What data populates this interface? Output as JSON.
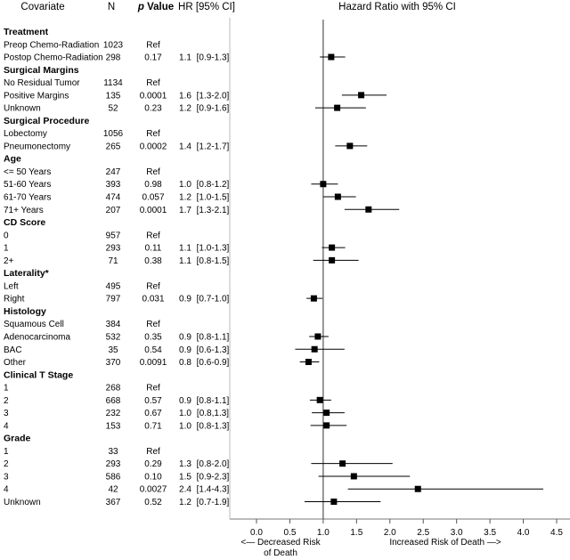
{
  "header": {
    "covariate": "Covariate",
    "n": "N",
    "p_prefix": "p",
    "p_suffix": " Value",
    "hr": "HR [95% CI]",
    "plot_title": "Hazard Ratio with 95% CI"
  },
  "footer": {
    "decreased_line1": "<— Decreased Risk",
    "decreased_line2": "of Death",
    "increased": "Increased Risk of Death —>"
  },
  "chart_data": {
    "type": "forest",
    "title": "Hazard Ratio with 95% CI",
    "xlim": [
      -0.2,
      4.6
    ],
    "xticks": [
      "0.0",
      "0.5",
      "1.0",
      "1.5",
      "2.0",
      "2.5",
      "3.0",
      "3.5",
      "4.0",
      "4.5"
    ],
    "reference_line": 1.0,
    "rows": [
      {
        "kind": "section",
        "label": "Treatment"
      },
      {
        "label": "Preop Chemo-Radiation",
        "n": "1023",
        "p": "Ref",
        "hr": "",
        "ci": ""
      },
      {
        "label": "Postop Chemo-Radiation",
        "n": "298",
        "p": "0.17",
        "hr": "1.1",
        "ci": "[0.9-1.3]",
        "est": 1.12,
        "lo": 0.95,
        "hi": 1.33
      },
      {
        "kind": "section",
        "label": "Surgical Margins"
      },
      {
        "label": "No Residual Tumor",
        "n": "1134",
        "p": "Ref",
        "hr": "",
        "ci": ""
      },
      {
        "label": "Positive Margins",
        "n": "135",
        "p": "0.0001",
        "hr": "1.6",
        "ci": "[1.3-2.0]",
        "est": 1.57,
        "lo": 1.28,
        "hi": 1.95
      },
      {
        "label": "Unknown",
        "n": "52",
        "p": "0.23",
        "hr": "1.2",
        "ci": "[0.9-1.6]",
        "est": 1.21,
        "lo": 0.88,
        "hi": 1.64
      },
      {
        "kind": "section",
        "label": "Surgical Procedure"
      },
      {
        "label": "Lobectomy",
        "n": "1056",
        "p": "Ref",
        "hr": "",
        "ci": ""
      },
      {
        "label": "Pneumonectomy",
        "n": "265",
        "p": "0.0002",
        "hr": "1.4",
        "ci": "[1.2-1.7]",
        "est": 1.4,
        "lo": 1.18,
        "hi": 1.66
      },
      {
        "kind": "section",
        "label": "Age"
      },
      {
        "label": "<= 50 Years",
        "n": "247",
        "p": "Ref",
        "hr": "",
        "ci": ""
      },
      {
        "label": "51-60 Years",
        "n": "393",
        "p": "0.98",
        "hr": "1.0",
        "ci": "[0.8-1.2]",
        "est": 1.0,
        "lo": 0.82,
        "hi": 1.22
      },
      {
        "label": "61-70 Years",
        "n": "474",
        "p": "0.057",
        "hr": "1.2",
        "ci": "[1.0-1.5]",
        "est": 1.22,
        "lo": 1.0,
        "hi": 1.49
      },
      {
        "label": "71+ Years",
        "n": "207",
        "p": "0.0001",
        "hr": "1.7",
        "ci": "[1.3-2.1]",
        "est": 1.68,
        "lo": 1.32,
        "hi": 2.14
      },
      {
        "kind": "section",
        "label": "CD Score"
      },
      {
        "label": "0",
        "n": "957",
        "p": "Ref",
        "hr": "",
        "ci": ""
      },
      {
        "label": "1",
        "n": "293",
        "p": "0.11",
        "hr": "1.1",
        "ci": "[1.0-1.3]",
        "est": 1.13,
        "lo": 0.98,
        "hi": 1.33
      },
      {
        "label": "2+",
        "n": "71",
        "p": "0.38",
        "hr": "1.1",
        "ci": "[0.8-1.5]",
        "est": 1.13,
        "lo": 0.85,
        "hi": 1.53
      },
      {
        "kind": "section",
        "label": "Laterality*"
      },
      {
        "label": "Left",
        "n": "495",
        "p": "Ref",
        "hr": "",
        "ci": ""
      },
      {
        "label": "Right",
        "n": "797",
        "p": "0.031",
        "hr": "0.9",
        "ci": "[0.7-1.0]",
        "est": 0.86,
        "lo": 0.75,
        "hi": 0.99
      },
      {
        "kind": "section",
        "label": "Histology"
      },
      {
        "label": "Squamous Cell",
        "n": "384",
        "p": "Ref",
        "hr": "",
        "ci": ""
      },
      {
        "label": "Adenocarcinoma",
        "n": "532",
        "p": "0.35",
        "hr": "0.9",
        "ci": "[0.8-1.1]",
        "est": 0.92,
        "lo": 0.79,
        "hi": 1.08
      },
      {
        "label": "BAC",
        "n": "35",
        "p": "0.54",
        "hy": "",
        "hr": "0.9",
        "ci": "[0.6-1.3]",
        "est": 0.87,
        "lo": 0.58,
        "hi": 1.32
      },
      {
        "label": "Other",
        "n": "370",
        "p": "0.0091",
        "hr": "0.8",
        "ci": "[0.6-0.9]",
        "est": 0.78,
        "lo": 0.65,
        "hi": 0.94
      },
      {
        "kind": "section",
        "label": "Clinical T Stage"
      },
      {
        "label": "1",
        "n": "268",
        "p": "Ref",
        "hr": "",
        "ci": ""
      },
      {
        "label": "2",
        "n": "668",
        "p": "0.57",
        "hr": "0.9",
        "ci": "[0.8-1.1]",
        "est": 0.95,
        "lo": 0.8,
        "hi": 1.12
      },
      {
        "label": "3",
        "n": "232",
        "p": "0.67",
        "hr": "1.0",
        "ci": "[0.8,1.3]",
        "est": 1.05,
        "lo": 0.83,
        "hi": 1.32
      },
      {
        "label": "4",
        "n": "153",
        "p": "0.71",
        "hr": "1.0",
        "ci": "[0.8-1.3]",
        "est": 1.05,
        "lo": 0.81,
        "hi": 1.35
      },
      {
        "kind": "section",
        "label": "Grade"
      },
      {
        "label": "1",
        "n": "33",
        "p": "Ref",
        "hr": "",
        "ci": ""
      },
      {
        "label": "2",
        "n": "293",
        "p": "0.29",
        "hr": "1.3",
        "ci": "[0.8-2.0]",
        "est": 1.29,
        "lo": 0.82,
        "hi": 2.04
      },
      {
        "label": "3",
        "n": "586",
        "p": "0.10",
        "hr": "1.5",
        "ci": "[0.9-2.3]",
        "est": 1.46,
        "lo": 0.93,
        "hi": 2.3
      },
      {
        "label": "4",
        "n": "42",
        "p": "0.0027",
        "hr": "2.4",
        "ci": "[1.4-4.3]",
        "est": 2.42,
        "lo": 1.37,
        "hi": 4.3
      },
      {
        "label": "Unknown",
        "n": "367",
        "p": "0.52",
        "hr": "1.2",
        "ci": "[0.7-1.9]",
        "est": 1.16,
        "lo": 0.72,
        "hi": 1.86
      }
    ]
  }
}
